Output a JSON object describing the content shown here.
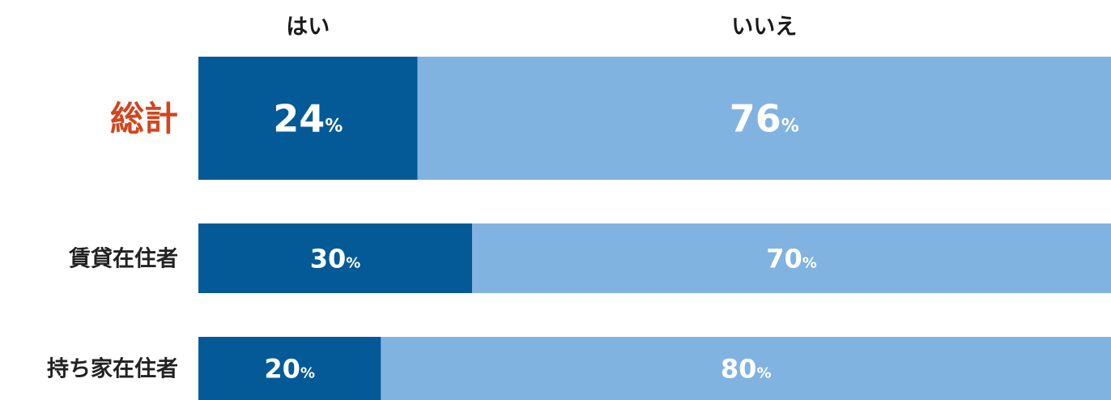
{
  "chart_data": {
    "type": "bar",
    "orientation": "horizontal",
    "stacked": true,
    "percent": true,
    "categories": [
      "総計",
      "賃貸在住者",
      "持ち家在住者"
    ],
    "highlight_category": "総計",
    "series": [
      {
        "name": "はい",
        "values": [
          24,
          30,
          20
        ],
        "color": "#045a96"
      },
      {
        "name": "いいえ",
        "values": [
          76,
          70,
          80
        ],
        "color": "#80b3e0"
      }
    ],
    "unit": "%",
    "xlim": [
      0,
      100
    ],
    "legend_position": "top",
    "grid": false
  },
  "colors": {
    "yes": "#045a96",
    "no": "#80b3e0",
    "highlight_label": "#d2451e",
    "label": "#222222",
    "value_text": "#ffffff"
  }
}
